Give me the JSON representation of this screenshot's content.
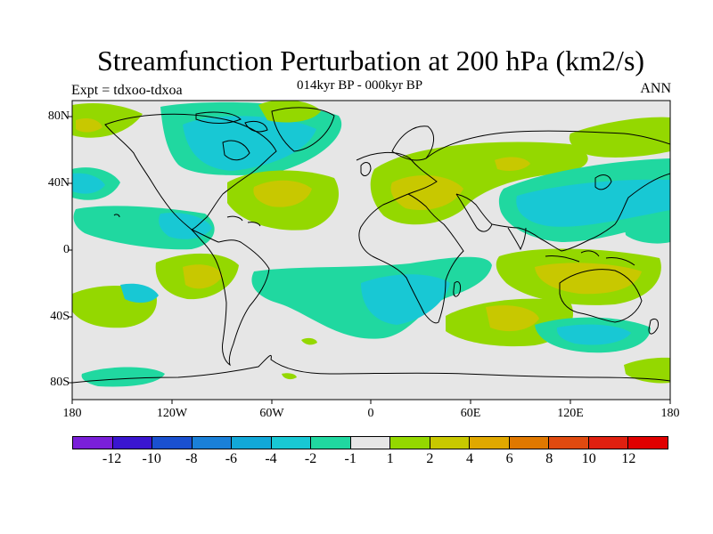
{
  "title": "Streamfunction Perturbation at 200 hPa (km2/s)",
  "subtitle": "014kyr BP - 000kyr BP",
  "left_label": "Expt = tdxoo-tdxoa",
  "right_label": "ANN",
  "lat_ticks": [
    "80N",
    "40N",
    "0",
    "40S",
    "80S"
  ],
  "lon_ticks": [
    "180",
    "120W",
    "60W",
    "0",
    "60E",
    "120E",
    "180"
  ],
  "colorbar": {
    "labels": [
      "-12",
      "-10",
      "-8",
      "-6",
      "-4",
      "-2",
      "-1",
      "1",
      "2",
      "4",
      "6",
      "8",
      "10",
      "12"
    ],
    "colors": [
      "#7a1fd9",
      "#3a16d0",
      "#1a50d0",
      "#1a80d8",
      "#12a8d8",
      "#18c8d4",
      "#20d8a0",
      "#e6e6e6",
      "#94d800",
      "#c8c800",
      "#e0a800",
      "#e07800",
      "#e04a10",
      "#e02010",
      "#e00000"
    ]
  },
  "map": {
    "ocean_color": "#e6e6e6",
    "coastline_color": "#000000"
  }
}
